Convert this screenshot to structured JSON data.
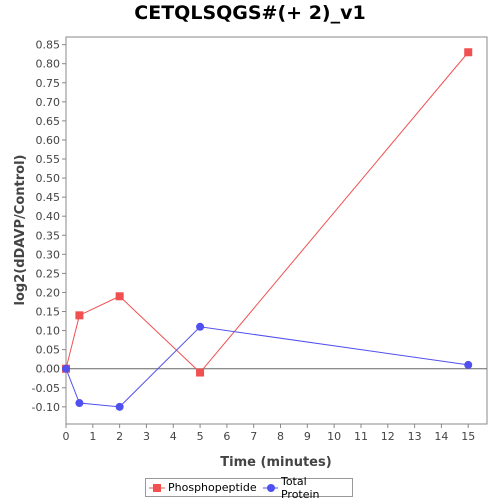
{
  "chart_data": {
    "type": "line",
    "title": "CETQLSQGS#(+ 2)_v1",
    "xlabel": "Time (minutes)",
    "ylabel": "log2(dDAVP/Control)",
    "xlim": [
      0,
      15.7
    ],
    "ylim": [
      -0.145,
      0.87
    ],
    "x_ticks": [
      0,
      1,
      2,
      3,
      4,
      5,
      6,
      7,
      8,
      9,
      10,
      11,
      12,
      13,
      14,
      15
    ],
    "y_ticks": [
      -0.1,
      -0.05,
      0.0,
      0.05,
      0.1,
      0.15,
      0.2,
      0.25,
      0.3,
      0.35,
      0.4,
      0.45,
      0.5,
      0.55,
      0.6,
      0.65,
      0.7,
      0.75,
      0.8,
      0.85
    ],
    "y_tick_labels": [
      "-0.10",
      "-0.05",
      "0.00",
      "0.05",
      "0.10",
      "0.15",
      "0.20",
      "0.25",
      "0.30",
      "0.35",
      "0.40",
      "0.45",
      "0.50",
      "0.55",
      "0.60",
      "0.65",
      "0.70",
      "0.75",
      "0.80",
      "0.85"
    ],
    "grid": false,
    "zero_line": true,
    "legend_position": "bottom",
    "series": [
      {
        "name": "Phosphopeptide",
        "color": "#f05050",
        "marker": "square",
        "x": [
          0,
          0.5,
          2,
          5,
          15
        ],
        "y": [
          0.0,
          0.14,
          0.19,
          -0.01,
          0.83
        ]
      },
      {
        "name": "Total Protein",
        "color": "#5050f0",
        "marker": "circle",
        "x": [
          0,
          0.5,
          2,
          5,
          15
        ],
        "y": [
          0.0,
          -0.09,
          -0.1,
          0.11,
          0.01
        ]
      }
    ]
  }
}
